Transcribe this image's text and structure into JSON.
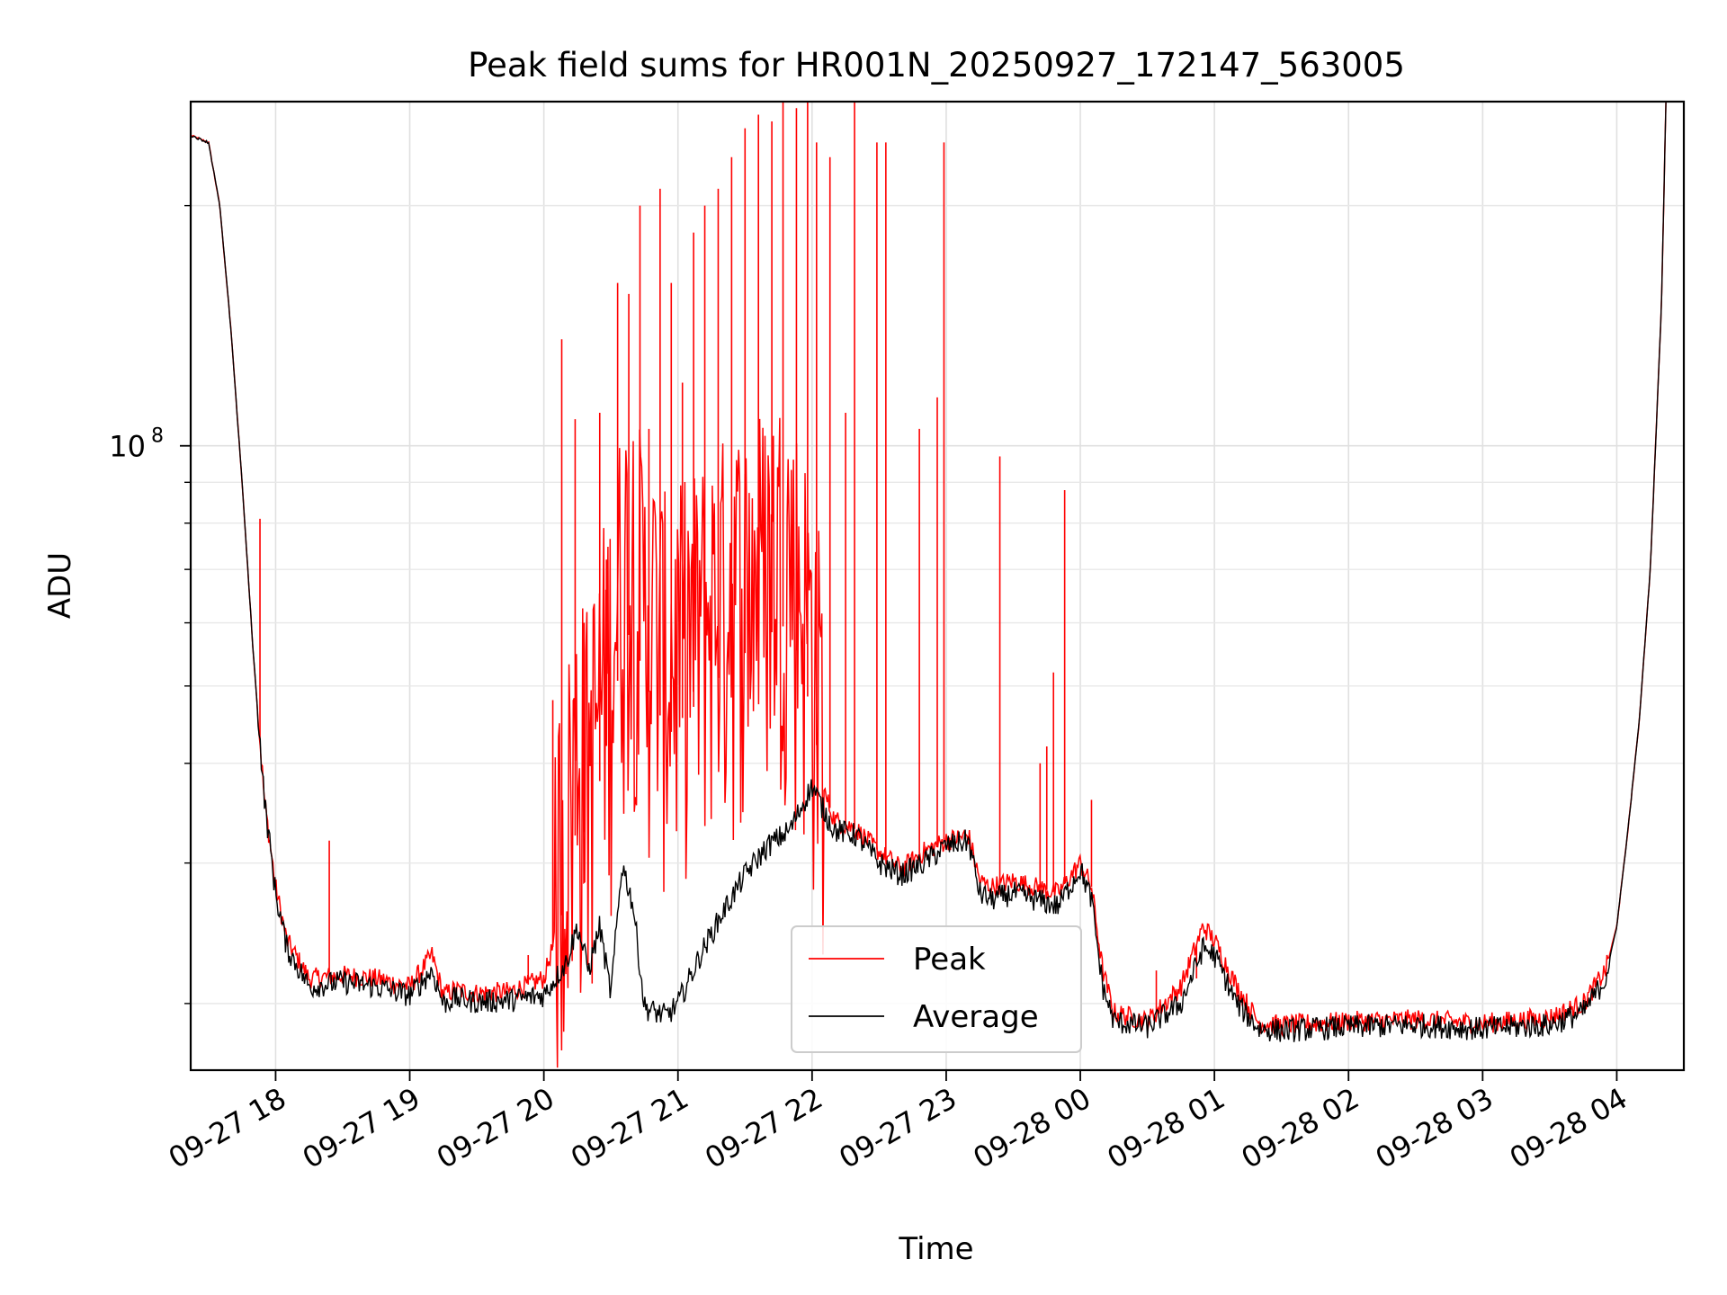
{
  "chart_data": {
    "type": "line",
    "title": "Peak field sums for HR001N_20250927_172147_563005",
    "xlabel": "Time",
    "ylabel": "ADU",
    "yscale": "log",
    "ylim": [
      16500000,
      270000000
    ],
    "xlim": [
      "2025-09-27 17:22",
      "2025-09-28 04:30"
    ],
    "grid": true,
    "legend_position": "lower-center",
    "x_ticks": [
      {
        "t": "2025-09-27 18:00",
        "label": "09-27 18"
      },
      {
        "t": "2025-09-27 19:00",
        "label": "09-27 19"
      },
      {
        "t": "2025-09-27 20:00",
        "label": "09-27 20"
      },
      {
        "t": "2025-09-27 21:00",
        "label": "09-27 21"
      },
      {
        "t": "2025-09-27 22:00",
        "label": "09-27 22"
      },
      {
        "t": "2025-09-27 23:00",
        "label": "09-27 23"
      },
      {
        "t": "2025-09-28 00:00",
        "label": "09-28 00"
      },
      {
        "t": "2025-09-28 01:00",
        "label": "09-28 01"
      },
      {
        "t": "2025-09-28 02:00",
        "label": "09-28 02"
      },
      {
        "t": "2025-09-28 03:00",
        "label": "09-28 03"
      },
      {
        "t": "2025-09-28 04:00",
        "label": "09-28 04"
      }
    ],
    "y_major_ticks": [
      {
        "value": 100000000,
        "base": "10",
        "exp": "8"
      }
    ],
    "y_minor_ticks": [
      20000000,
      30000000,
      40000000,
      50000000,
      60000000,
      70000000,
      80000000,
      90000000,
      200000000
    ],
    "series": [
      {
        "name": "Peak",
        "color": "#ff0000",
        "x": [
          "2025-09-27 17:22",
          "2025-09-27 17:25",
          "2025-09-27 17:30",
          "2025-09-27 17:35",
          "2025-09-27 17:40",
          "2025-09-27 17:45",
          "2025-09-27 17:50",
          "2025-09-27 17:55",
          "2025-09-27 18:00",
          "2025-09-27 18:05",
          "2025-09-27 18:15",
          "2025-09-27 18:30",
          "2025-09-27 18:45",
          "2025-09-27 19:00",
          "2025-09-27 19:10",
          "2025-09-27 19:15",
          "2025-09-27 19:20",
          "2025-09-27 19:30",
          "2025-09-27 19:45",
          "2025-09-27 20:00",
          "2025-09-27 20:10",
          "2025-09-27 20:15",
          "2025-09-27 20:20",
          "2025-09-27 20:25",
          "2025-09-27 20:30",
          "2025-09-27 20:35",
          "2025-09-27 20:40",
          "2025-09-27 20:45",
          "2025-09-27 20:50",
          "2025-09-27 20:55",
          "2025-09-27 21:00",
          "2025-09-27 21:10",
          "2025-09-27 21:20",
          "2025-09-27 21:30",
          "2025-09-27 21:40",
          "2025-09-27 21:50",
          "2025-09-27 22:00",
          "2025-09-27 22:05",
          "2025-09-27 22:10",
          "2025-09-27 22:20",
          "2025-09-27 22:30",
          "2025-09-27 22:40",
          "2025-09-27 22:50",
          "2025-09-27 23:00",
          "2025-09-27 23:10",
          "2025-09-27 23:15",
          "2025-09-27 23:20",
          "2025-09-27 23:30",
          "2025-09-27 23:40",
          "2025-09-27 23:50",
          "2025-09-28 00:00",
          "2025-09-28 00:05",
          "2025-09-28 00:10",
          "2025-09-28 00:15",
          "2025-09-28 00:30",
          "2025-09-28 00:45",
          "2025-09-28 00:55",
          "2025-09-28 01:00",
          "2025-09-28 01:10",
          "2025-09-28 01:20",
          "2025-09-28 01:30",
          "2025-09-28 02:00",
          "2025-09-28 02:30",
          "2025-09-28 03:00",
          "2025-09-28 03:30",
          "2025-09-28 03:45",
          "2025-09-28 03:55",
          "2025-09-28 04:00",
          "2025-09-28 04:05",
          "2025-09-28 04:10",
          "2025-09-28 04:15",
          "2025-09-28 04:20",
          "2025-09-28 04:22"
        ],
        "values": [
          245000000,
          243000000,
          240000000,
          200000000,
          140000000,
          90000000,
          55000000,
          36000000,
          28000000,
          24000000,
          21500000,
          21700000,
          21500000,
          21000000,
          23000000,
          20500000,
          20800000,
          20600000,
          20700000,
          21500000,
          27000000,
          34000000,
          32000000,
          38000000,
          45000000,
          55000000,
          60000000,
          50000000,
          48000000,
          43000000,
          45000000,
          48000000,
          52000000,
          55000000,
          58000000,
          60000000,
          46000000,
          37000000,
          34000000,
          33000000,
          31000000,
          29500000,
          31000000,
          32000000,
          32500000,
          28500000,
          28000000,
          28500000,
          28000000,
          27500000,
          30000000,
          28000000,
          22000000,
          19500000,
          19000000,
          21000000,
          25000000,
          24000000,
          21000000,
          18900000,
          18800000,
          19000000,
          19100000,
          18900000,
          19200000,
          20000000,
          22000000,
          25000000,
          33000000,
          45000000,
          70000000,
          150000000,
          270000000
        ],
        "spikes": [
          {
            "t": "2025-09-27 17:53",
            "v": 81000000
          },
          {
            "t": "2025-09-27 18:24",
            "v": 32000000
          },
          {
            "t": "2025-09-27 19:53",
            "v": 23000000
          },
          {
            "t": "2025-09-27 20:04",
            "v": 48000000
          },
          {
            "t": "2025-09-27 20:08",
            "v": 136000000
          },
          {
            "t": "2025-09-27 20:14",
            "v": 108000000
          },
          {
            "t": "2025-09-27 20:18",
            "v": 60000000
          },
          {
            "t": "2025-09-27 20:25",
            "v": 110000000
          },
          {
            "t": "2025-09-27 20:28",
            "v": 72000000
          },
          {
            "t": "2025-09-27 20:33",
            "v": 160000000
          },
          {
            "t": "2025-09-27 20:38",
            "v": 155000000
          },
          {
            "t": "2025-09-27 20:43",
            "v": 200000000
          },
          {
            "t": "2025-09-27 20:47",
            "v": 105000000
          },
          {
            "t": "2025-09-27 20:52",
            "v": 210000000
          },
          {
            "t": "2025-09-27 20:57",
            "v": 160000000
          },
          {
            "t": "2025-09-27 21:02",
            "v": 120000000
          },
          {
            "t": "2025-09-27 21:07",
            "v": 185000000
          },
          {
            "t": "2025-09-27 21:12",
            "v": 200000000
          },
          {
            "t": "2025-09-27 21:18",
            "v": 210000000
          },
          {
            "t": "2025-09-27 21:24",
            "v": 230000000
          },
          {
            "t": "2025-09-27 21:30",
            "v": 250000000
          },
          {
            "t": "2025-09-27 21:36",
            "v": 260000000
          },
          {
            "t": "2025-09-27 21:42",
            "v": 255000000
          },
          {
            "t": "2025-09-27 21:47",
            "v": 270000000
          },
          {
            "t": "2025-09-27 21:53",
            "v": 265000000
          },
          {
            "t": "2025-09-27 21:58",
            "v": 270000000
          },
          {
            "t": "2025-09-27 22:02",
            "v": 240000000
          },
          {
            "t": "2025-09-27 22:08",
            "v": 230000000
          },
          {
            "t": "2025-09-27 22:15",
            "v": 110000000
          },
          {
            "t": "2025-09-27 22:19",
            "v": 270000000
          },
          {
            "t": "2025-09-27 22:29",
            "v": 240000000
          },
          {
            "t": "2025-09-27 22:33",
            "v": 240000000
          },
          {
            "t": "2025-09-27 22:48",
            "v": 105000000
          },
          {
            "t": "2025-09-27 22:56",
            "v": 115000000
          },
          {
            "t": "2025-09-27 22:59",
            "v": 240000000
          },
          {
            "t": "2025-09-27 23:24",
            "v": 97000000
          },
          {
            "t": "2025-09-27 23:42",
            "v": 40000000
          },
          {
            "t": "2025-09-27 23:45",
            "v": 42000000
          },
          {
            "t": "2025-09-27 23:48",
            "v": 52000000
          },
          {
            "t": "2025-09-27 23:53",
            "v": 88000000
          },
          {
            "t": "2025-09-28 00:05",
            "v": 36000000
          },
          {
            "t": "2025-09-28 00:34",
            "v": 22000000
          },
          {
            "t": "2025-09-28 00:52",
            "v": 21500000
          },
          {
            "t": "2025-09-28 02:33",
            "v": 19500000
          }
        ]
      },
      {
        "name": "Average",
        "color": "#000000",
        "x": [
          "2025-09-27 17:22",
          "2025-09-27 17:25",
          "2025-09-27 17:30",
          "2025-09-27 17:35",
          "2025-09-27 17:40",
          "2025-09-27 17:45",
          "2025-09-27 17:50",
          "2025-09-27 17:55",
          "2025-09-27 18:00",
          "2025-09-27 18:05",
          "2025-09-27 18:15",
          "2025-09-27 18:30",
          "2025-09-27 18:45",
          "2025-09-27 19:00",
          "2025-09-27 19:10",
          "2025-09-27 19:15",
          "2025-09-27 19:20",
          "2025-09-27 19:30",
          "2025-09-27 19:45",
          "2025-09-27 20:00",
          "2025-09-27 20:10",
          "2025-09-27 20:15",
          "2025-09-27 20:20",
          "2025-09-27 20:25",
          "2025-09-27 20:30",
          "2025-09-27 20:35",
          "2025-09-27 20:40",
          "2025-09-27 20:45",
          "2025-09-27 20:50",
          "2025-09-27 20:55",
          "2025-09-27 21:00",
          "2025-09-27 21:10",
          "2025-09-27 21:20",
          "2025-09-27 21:30",
          "2025-09-27 21:40",
          "2025-09-27 21:50",
          "2025-09-27 22:00",
          "2025-09-27 22:05",
          "2025-09-27 22:10",
          "2025-09-27 22:20",
          "2025-09-27 22:30",
          "2025-09-27 22:40",
          "2025-09-27 22:50",
          "2025-09-27 23:00",
          "2025-09-27 23:10",
          "2025-09-27 23:15",
          "2025-09-27 23:20",
          "2025-09-27 23:30",
          "2025-09-27 23:40",
          "2025-09-27 23:50",
          "2025-09-28 00:00",
          "2025-09-28 00:05",
          "2025-09-28 00:10",
          "2025-09-28 00:15",
          "2025-09-28 00:30",
          "2025-09-28 00:45",
          "2025-09-28 00:55",
          "2025-09-28 01:00",
          "2025-09-28 01:10",
          "2025-09-28 01:20",
          "2025-09-28 01:30",
          "2025-09-28 02:00",
          "2025-09-28 02:30",
          "2025-09-28 03:00",
          "2025-09-28 03:30",
          "2025-09-28 03:45",
          "2025-09-28 03:55",
          "2025-09-28 04:00",
          "2025-09-28 04:05",
          "2025-09-28 04:10",
          "2025-09-28 04:15",
          "2025-09-28 04:20",
          "2025-09-28 04:22"
        ],
        "values": [
          245000000,
          243000000,
          240000000,
          200000000,
          140000000,
          90000000,
          55000000,
          36000000,
          27500000,
          23500000,
          21000000,
          21300000,
          21000000,
          20500000,
          22000000,
          20000000,
          20300000,
          20100000,
          20200000,
          20500000,
          22500000,
          25000000,
          22000000,
          25000000,
          20500000,
          30000000,
          26500000,
          19800000,
          19500000,
          19300000,
          20000000,
          23000000,
          26000000,
          29000000,
          31500000,
          33000000,
          37500000,
          35000000,
          33000000,
          32500000,
          30000000,
          29000000,
          30000000,
          31500000,
          32000000,
          27500000,
          27000000,
          27500000,
          27000000,
          26500000,
          29500000,
          27000000,
          21000000,
          19000000,
          18700000,
          20000000,
          23500000,
          23000000,
          20000000,
          18600000,
          18500000,
          18700000,
          18800000,
          18600000,
          18800000,
          19500000,
          21500000,
          25000000,
          33000000,
          45000000,
          70000000,
          150000000,
          270000000
        ]
      }
    ]
  }
}
